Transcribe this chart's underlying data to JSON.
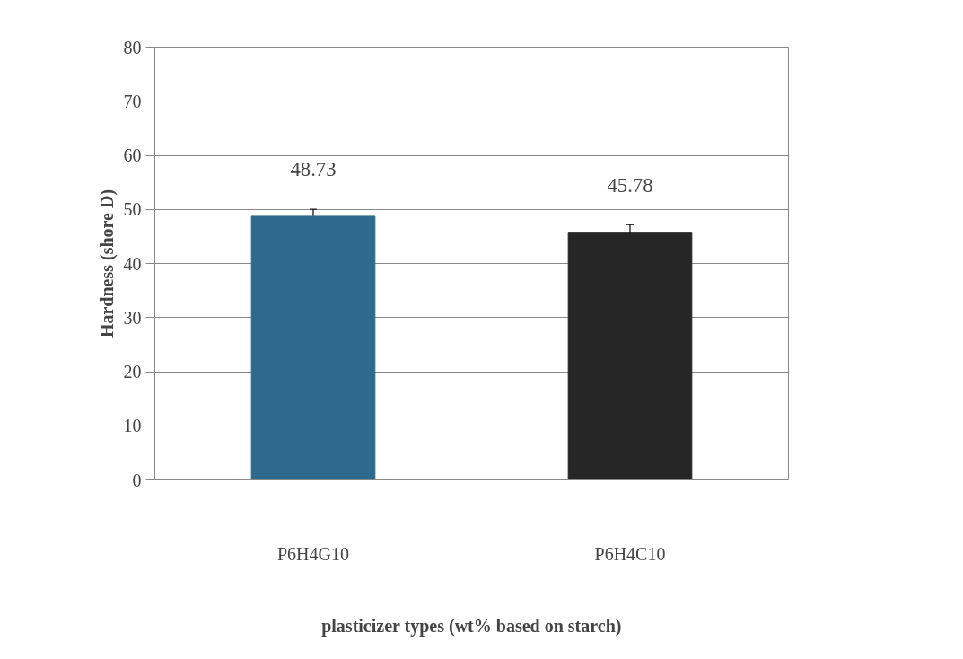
{
  "chart_data": {
    "type": "bar",
    "xlabel": "plasticizer types (wt% based on starch)",
    "ylabel": "Hardness (shore D)",
    "categories": [
      "P6H4G10",
      "P6H4C10"
    ],
    "values": [
      48.73,
      45.78
    ],
    "colors": [
      "#2e6a8e",
      "#262626"
    ],
    "errors": [
      1.3,
      1.4
    ],
    "data_labels": true,
    "ylim": [
      0,
      80
    ],
    "yticks": [
      0,
      10,
      20,
      30,
      40,
      50,
      60,
      70,
      80
    ],
    "grid": "y"
  }
}
